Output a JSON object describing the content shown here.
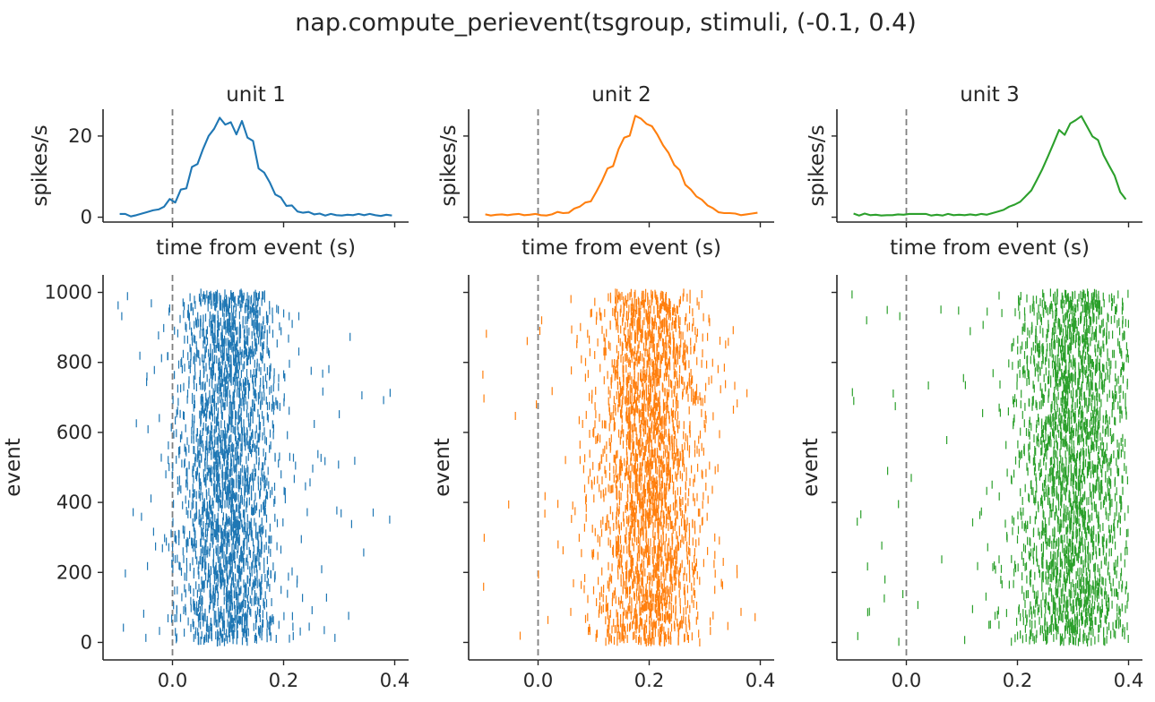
{
  "figure": {
    "title": "nap.compute_perievent(tsgroup, stimuli, (-0.1, 0.4)"
  },
  "chart_data": [
    {
      "type": "line",
      "title": "unit 1",
      "xlabel": "time from event (s)",
      "ylabel": "spikes/s",
      "xlim": [
        -0.125,
        0.425
      ],
      "ylim": [
        -1.2,
        26.6
      ],
      "yticks": [
        0,
        20
      ],
      "ytick_labels": [
        "0",
        "20"
      ],
      "xticks": [
        0.0,
        0.2,
        0.4
      ],
      "xtick_labels_shown": false,
      "event_marker_x": 0.0,
      "color": "#1f77b4",
      "x": [
        -0.095,
        -0.085,
        -0.075,
        -0.065,
        -0.055,
        -0.045,
        -0.035,
        -0.025,
        -0.015,
        -0.005,
        0.005,
        0.015,
        0.025,
        0.035,
        0.045,
        0.055,
        0.065,
        0.075,
        0.085,
        0.095,
        0.105,
        0.115,
        0.125,
        0.135,
        0.145,
        0.155,
        0.165,
        0.175,
        0.185,
        0.195,
        0.205,
        0.215,
        0.225,
        0.235,
        0.245,
        0.255,
        0.265,
        0.275,
        0.285,
        0.295,
        0.305,
        0.315,
        0.325,
        0.335,
        0.345,
        0.355,
        0.365,
        0.375,
        0.385,
        0.395
      ],
      "y": [
        0.8,
        0.8,
        0.2,
        0.5,
        0.9,
        1.3,
        1.7,
        1.9,
        2.6,
        4.5,
        3.6,
        6.8,
        7.1,
        12.4,
        13.1,
        16.8,
        20.0,
        21.8,
        24.5,
        22.8,
        23.4,
        20.4,
        23.7,
        19.6,
        18.8,
        12.0,
        11.0,
        8.6,
        5.6,
        4.9,
        2.8,
        2.9,
        1.4,
        1.1,
        1.3,
        0.7,
        0.9,
        0.4,
        0.8,
        0.5,
        0.4,
        0.6,
        0.5,
        0.8,
        0.5,
        0.8,
        0.5,
        0.3,
        0.6,
        0.4
      ]
    },
    {
      "type": "line",
      "title": "unit 2",
      "xlabel": "time from event (s)",
      "ylabel": "spikes/s",
      "xlim": [
        -0.125,
        0.425
      ],
      "ylim": [
        -1.2,
        26.6
      ],
      "yticks": [
        0,
        20
      ],
      "ytick_labels_shown": false,
      "xticks": [
        0.0,
        0.2,
        0.4
      ],
      "xtick_labels_shown": false,
      "event_marker_x": 0.0,
      "color": "#ff7f0e",
      "x": [
        -0.095,
        -0.085,
        -0.075,
        -0.065,
        -0.055,
        -0.045,
        -0.035,
        -0.025,
        -0.015,
        -0.005,
        0.005,
        0.015,
        0.025,
        0.035,
        0.045,
        0.055,
        0.065,
        0.075,
        0.085,
        0.095,
        0.105,
        0.115,
        0.125,
        0.135,
        0.145,
        0.155,
        0.165,
        0.175,
        0.185,
        0.195,
        0.205,
        0.215,
        0.225,
        0.235,
        0.245,
        0.255,
        0.265,
        0.275,
        0.285,
        0.295,
        0.305,
        0.315,
        0.325,
        0.335,
        0.345,
        0.355,
        0.365,
        0.375,
        0.385,
        0.395
      ],
      "y": [
        0.7,
        0.4,
        0.6,
        0.7,
        0.5,
        0.7,
        0.8,
        0.5,
        0.6,
        0.8,
        0.5,
        0.4,
        0.7,
        1.3,
        1.0,
        1.1,
        2.1,
        2.6,
        3.6,
        3.9,
        6.3,
        8.9,
        12.0,
        12.6,
        16.8,
        19.6,
        20.1,
        25.0,
        24.3,
        23.0,
        22.4,
        20.3,
        17.7,
        15.8,
        12.9,
        11.6,
        8.0,
        6.8,
        5.1,
        4.3,
        2.9,
        2.2,
        1.2,
        1.0,
        1.0,
        0.9,
        0.5,
        0.7,
        0.9,
        1.1
      ]
    },
    {
      "type": "line",
      "title": "unit 3",
      "xlabel": "time from event (s)",
      "ylabel": "spikes/s",
      "xlim": [
        -0.125,
        0.425
      ],
      "ylim": [
        -1.2,
        26.6
      ],
      "yticks": [
        0,
        20
      ],
      "ytick_labels_shown": false,
      "xticks": [
        0.0,
        0.2,
        0.4
      ],
      "xtick_labels_shown": false,
      "event_marker_x": 0.0,
      "color": "#2ca02c",
      "x": [
        -0.095,
        -0.085,
        -0.075,
        -0.065,
        -0.055,
        -0.045,
        -0.035,
        -0.025,
        -0.015,
        -0.005,
        0.005,
        0.015,
        0.025,
        0.035,
        0.045,
        0.055,
        0.065,
        0.075,
        0.085,
        0.095,
        0.105,
        0.115,
        0.125,
        0.135,
        0.145,
        0.155,
        0.165,
        0.175,
        0.185,
        0.195,
        0.205,
        0.215,
        0.225,
        0.235,
        0.245,
        0.255,
        0.265,
        0.275,
        0.285,
        0.295,
        0.305,
        0.315,
        0.325,
        0.335,
        0.345,
        0.355,
        0.365,
        0.375,
        0.385,
        0.395
      ],
      "y": [
        0.9,
        0.4,
        0.9,
        0.5,
        0.6,
        0.4,
        0.5,
        0.5,
        0.7,
        0.6,
        0.8,
        0.8,
        0.8,
        0.8,
        0.4,
        0.6,
        0.4,
        0.8,
        0.5,
        0.6,
        0.5,
        0.7,
        0.5,
        0.8,
        0.6,
        1.0,
        1.4,
        1.8,
        2.6,
        3.1,
        3.8,
        5.2,
        6.6,
        9.2,
        11.9,
        15.0,
        18.2,
        21.5,
        20.3,
        23.1,
        23.9,
        24.9,
        22.4,
        19.9,
        19.0,
        15.3,
        12.7,
        10.2,
        6.2,
        4.4
      ]
    },
    {
      "type": "scatter",
      "marker": "vertical-tick",
      "title": "",
      "xlabel": "",
      "ylabel": "event",
      "xlim": [
        -0.125,
        0.425
      ],
      "ylim": [
        -50,
        1050
      ],
      "xticks": [
        0.0,
        0.2,
        0.4
      ],
      "xtick_labels": [
        "0.0",
        "0.2",
        "0.4"
      ],
      "yticks": [
        0,
        200,
        400,
        600,
        800,
        1000
      ],
      "ytick_labels": [
        "0",
        "200",
        "400",
        "600",
        "800",
        "1000"
      ],
      "event_marker_x": 0.0,
      "color": "#1f77b4",
      "n_events": 1000,
      "time_window": [
        -0.1,
        0.4
      ],
      "peak_time": 0.1,
      "peak_width": 0.045,
      "baseline_density": 0.09,
      "spike_count_approx": 3000
    },
    {
      "type": "scatter",
      "marker": "vertical-tick",
      "title": "",
      "xlabel": "",
      "ylabel": "event",
      "xlim": [
        -0.125,
        0.425
      ],
      "ylim": [
        -50,
        1050
      ],
      "xticks": [
        0.0,
        0.2,
        0.4
      ],
      "xtick_labels": [
        "0.0",
        "0.2",
        "0.4"
      ],
      "yticks": [
        0,
        200,
        400,
        600,
        800,
        1000
      ],
      "ytick_labels_shown": false,
      "event_marker_x": 0.0,
      "color": "#ff7f0e",
      "n_events": 1000,
      "time_window": [
        -0.1,
        0.4
      ],
      "peak_time": 0.2,
      "peak_width": 0.048,
      "baseline_density": 0.07,
      "spike_count_approx": 3000
    },
    {
      "type": "scatter",
      "marker": "vertical-tick",
      "title": "",
      "xlabel": "",
      "ylabel": "event",
      "xlim": [
        -0.125,
        0.425
      ],
      "ylim": [
        -50,
        1050
      ],
      "xticks": [
        0.0,
        0.2,
        0.4
      ],
      "xtick_labels": [
        "0.0",
        "0.2",
        "0.4"
      ],
      "yticks": [
        0,
        200,
        400,
        600,
        800,
        1000
      ],
      "ytick_labels_shown": false,
      "event_marker_x": 0.0,
      "color": "#2ca02c",
      "n_events": 1000,
      "time_window": [
        -0.1,
        0.4
      ],
      "peak_time": 0.3,
      "peak_width": 0.055,
      "baseline_density": 0.06,
      "spike_count_approx": 3000
    }
  ]
}
